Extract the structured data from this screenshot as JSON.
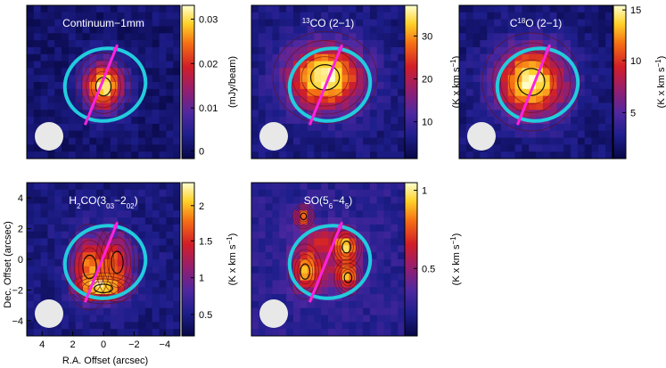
{
  "figure": {
    "x_axis_label": "R.A. Offset (arcsec)",
    "y_axis_label": "Dec. Offset (arcsec)",
    "x_ticks": [
      "4",
      "2",
      "0",
      "−2",
      "−4"
    ],
    "y_ticks": [
      "4",
      "2",
      "0",
      "−2",
      "−4"
    ],
    "panels": [
      {
        "id": "continuum",
        "title": "Continuum−1mm",
        "title_parts": [
          {
            "t": "Continuum−1mm",
            "s": "normal"
          }
        ],
        "unit_parts": [
          {
            "t": "(mJy/beam)",
            "s": "normal"
          }
        ],
        "colorbar_ticks": [
          {
            "label": "0.03",
            "frac": 0.91
          },
          {
            "label": "0.02",
            "frac": 0.62
          },
          {
            "label": "0.01",
            "frac": 0.33
          },
          {
            "label": "0",
            "frac": 0.05
          }
        ],
        "emission": {
          "peak": 0.95,
          "bg": 0.08,
          "blobs": [
            {
              "cx": 0.0,
              "cy": -0.3,
              "sx": 0.9,
              "sy": 1.1,
              "a": 1.0
            }
          ]
        }
      },
      {
        "id": "13co",
        "title": "13CO (2−1)",
        "title_parts": [
          {
            "t": "13",
            "s": "sup"
          },
          {
            "t": "CO (2−1)",
            "s": "normal"
          }
        ],
        "unit_parts": [
          {
            "t": "(K x km s",
            "s": "normal"
          },
          {
            "t": "−1",
            "s": "sup"
          },
          {
            "t": ")",
            "s": "normal"
          }
        ],
        "colorbar_ticks": [
          {
            "label": "30",
            "frac": 0.8
          },
          {
            "label": "20",
            "frac": 0.52
          },
          {
            "label": "10",
            "frac": 0.24
          }
        ],
        "emission": {
          "peak": 1.0,
          "bg": 0.12,
          "blobs": [
            {
              "cx": 0.2,
              "cy": 0.3,
              "sx": 1.7,
              "sy": 1.5,
              "a": 1.0
            }
          ]
        }
      },
      {
        "id": "c18o",
        "title": "C18O (2−1)",
        "title_parts": [
          {
            "t": "C",
            "s": "normal"
          },
          {
            "t": "18",
            "s": "sup"
          },
          {
            "t": "O (2−1)",
            "s": "normal"
          }
        ],
        "unit_parts": [
          {
            "t": "(K x km s",
            "s": "normal"
          },
          {
            "t": "−1",
            "s": "sup"
          },
          {
            "t": ")",
            "s": "normal"
          }
        ],
        "colorbar_ticks": [
          {
            "label": "15",
            "frac": 0.97
          },
          {
            "label": "10",
            "frac": 0.64
          },
          {
            "label": "5",
            "frac": 0.3
          }
        ],
        "emission": {
          "peak": 0.98,
          "bg": 0.1,
          "blobs": [
            {
              "cx": 0.3,
              "cy": 0.0,
              "sx": 1.6,
              "sy": 1.6,
              "a": 1.0
            }
          ]
        }
      },
      {
        "id": "h2co",
        "title": "H2CO(303−202)",
        "title_parts": [
          {
            "t": "H",
            "s": "normal"
          },
          {
            "t": "2",
            "s": "sub"
          },
          {
            "t": "CO(3",
            "s": "normal"
          },
          {
            "t": "03",
            "s": "sub"
          },
          {
            "t": "−2",
            "s": "normal"
          },
          {
            "t": "02",
            "s": "sub"
          },
          {
            "t": ")",
            "s": "normal"
          }
        ],
        "unit_parts": [
          {
            "t": "(K x km s",
            "s": "normal"
          },
          {
            "t": "−1",
            "s": "sup"
          },
          {
            "t": ")",
            "s": "normal"
          }
        ],
        "colorbar_ticks": [
          {
            "label": "2",
            "frac": 0.85
          },
          {
            "label": "1.5",
            "frac": 0.62
          },
          {
            "label": "1",
            "frac": 0.38
          },
          {
            "label": "0.5",
            "frac": 0.14
          }
        ],
        "emission": {
          "peak": 0.95,
          "bg": 0.12,
          "blobs": [
            {
              "cx": 0.9,
              "cy": -0.5,
              "sx": 0.8,
              "sy": 1.4,
              "a": 1.0
            },
            {
              "cx": -0.9,
              "cy": -0.2,
              "sx": 0.7,
              "sy": 1.3,
              "a": 0.85
            },
            {
              "cx": 0.0,
              "cy": -1.9,
              "sx": 1.1,
              "sy": 0.5,
              "a": 0.8
            }
          ]
        }
      },
      {
        "id": "so",
        "title": "SO(56−45)",
        "title_parts": [
          {
            "t": "SO(5",
            "s": "normal"
          },
          {
            "t": "6",
            "s": "sub"
          },
          {
            "t": "−4",
            "s": "normal"
          },
          {
            "t": "5",
            "s": "sub"
          },
          {
            "t": ")",
            "s": "normal"
          }
        ],
        "unit_parts": [
          {
            "t": "(K x km s",
            "s": "normal"
          },
          {
            "t": "−1",
            "s": "sup"
          },
          {
            "t": ")",
            "s": "normal"
          }
        ],
        "colorbar_ticks": [
          {
            "label": "1",
            "frac": 0.95
          },
          {
            "label": "0.5",
            "frac": 0.44
          }
        ],
        "emission": {
          "peak": 0.9,
          "bg": 0.18,
          "blobs": [
            {
              "cx": 1.5,
              "cy": -0.8,
              "sx": 0.55,
              "sy": 0.9,
              "a": 0.9
            },
            {
              "cx": -1.2,
              "cy": 0.8,
              "sx": 0.5,
              "sy": 0.7,
              "a": 0.85
            },
            {
              "cx": -1.3,
              "cy": -1.2,
              "sx": 0.45,
              "sy": 0.6,
              "a": 0.8
            },
            {
              "cx": 1.6,
              "cy": 2.8,
              "sx": 0.35,
              "sy": 0.4,
              "a": 0.95
            },
            {
              "cx": 0.0,
              "cy": -0.3,
              "sx": 1.4,
              "sy": 1.4,
              "a": 0.45
            },
            {
              "cx": 0.5,
              "cy": 1.4,
              "sx": 1.2,
              "sy": 0.6,
              "a": 0.4
            }
          ]
        }
      }
    ],
    "colors": {
      "ellipse": "#22ccdd",
      "arrow": "#ff22dd",
      "beam": "#e8e8e8",
      "contour": "#000000"
    }
  }
}
